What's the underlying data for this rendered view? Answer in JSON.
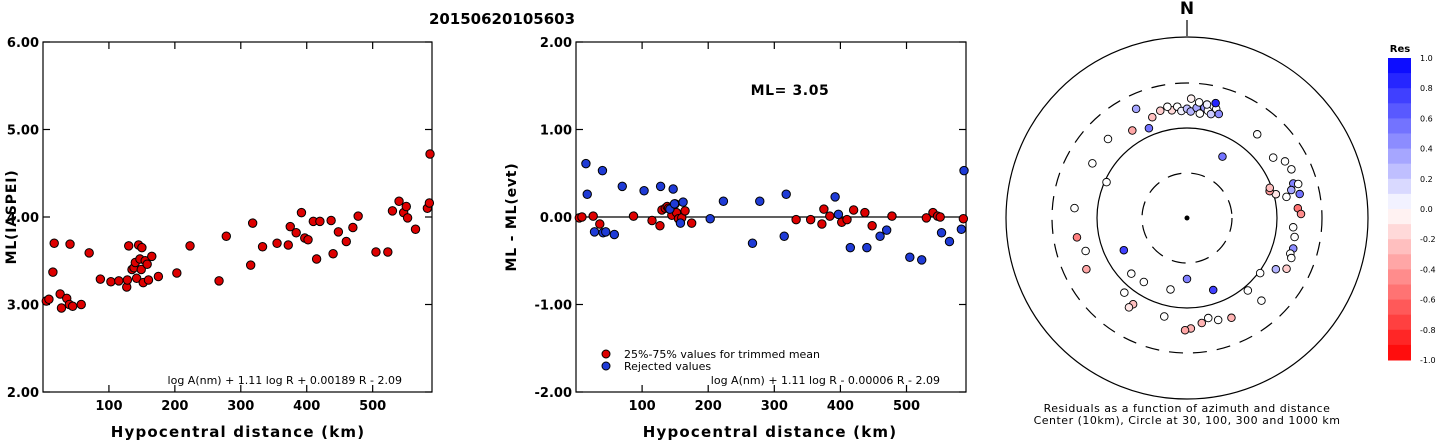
{
  "title": "20150620105603",
  "chart_data": [
    {
      "type": "scatter",
      "id": "left",
      "ylabel": "ML(IASPEI)",
      "xlabel": "Hypocentral distance (km)",
      "ylim": [
        2.0,
        6.0
      ],
      "xlim": [
        0,
        590
      ],
      "yticks": [
        "2.00",
        "3.00",
        "4.00",
        "5.00",
        "6.00"
      ],
      "xticks": [
        "100",
        "200",
        "300",
        "400",
        "500"
      ],
      "formula": "log A(nm) + 1.11 log R + 0.00189 R - 2.09",
      "marker_color": "#dd0000",
      "points": [
        [
          5,
          3.04
        ],
        [
          9,
          3.06
        ],
        [
          15,
          3.37
        ],
        [
          17,
          3.7
        ],
        [
          26,
          3.12
        ],
        [
          28,
          2.96
        ],
        [
          36,
          3.07
        ],
        [
          40,
          3.0
        ],
        [
          45,
          2.98
        ],
        [
          41,
          3.69
        ],
        [
          58,
          3.0
        ],
        [
          70,
          3.59
        ],
        [
          87,
          3.29
        ],
        [
          103,
          3.26
        ],
        [
          115,
          3.27
        ],
        [
          127,
          3.2
        ],
        [
          128,
          3.28
        ],
        [
          130,
          3.67
        ],
        [
          135,
          3.4
        ],
        [
          138,
          3.42
        ],
        [
          140,
          3.48
        ],
        [
          142,
          3.3
        ],
        [
          145,
          3.68
        ],
        [
          147,
          3.52
        ],
        [
          149,
          3.4
        ],
        [
          150,
          3.65
        ],
        [
          152,
          3.25
        ],
        [
          155,
          3.5
        ],
        [
          158,
          3.46
        ],
        [
          160,
          3.28
        ],
        [
          165,
          3.55
        ],
        [
          175,
          3.32
        ],
        [
          203,
          3.36
        ],
        [
          223,
          3.67
        ],
        [
          267,
          3.27
        ],
        [
          278,
          3.78
        ],
        [
          315,
          3.45
        ],
        [
          318,
          3.93
        ],
        [
          333,
          3.66
        ],
        [
          355,
          3.7
        ],
        [
          372,
          3.68
        ],
        [
          375,
          3.89
        ],
        [
          384,
          3.82
        ],
        [
          392,
          4.05
        ],
        [
          397,
          3.76
        ],
        [
          402,
          3.74
        ],
        [
          410,
          3.95
        ],
        [
          415,
          3.52
        ],
        [
          420,
          3.95
        ],
        [
          437,
          3.96
        ],
        [
          440,
          3.58
        ],
        [
          448,
          3.83
        ],
        [
          460,
          3.72
        ],
        [
          470,
          3.88
        ],
        [
          478,
          4.01
        ],
        [
          505,
          3.6
        ],
        [
          523,
          3.6
        ],
        [
          530,
          4.07
        ],
        [
          540,
          4.18
        ],
        [
          547,
          4.05
        ],
        [
          551,
          4.12
        ],
        [
          553,
          3.99
        ],
        [
          565,
          3.86
        ],
        [
          583,
          4.1
        ],
        [
          586,
          4.16
        ],
        [
          587,
          4.72
        ]
      ]
    },
    {
      "type": "scatter",
      "id": "middle",
      "ylabel": "ML - ML(evt)",
      "xlabel": "Hypocentral distance (km)",
      "ylim": [
        -2.0,
        2.0
      ],
      "xlim": [
        0,
        590
      ],
      "yticks": [
        "-2.00",
        "-1.00",
        "0.00",
        "1.00",
        "2.00"
      ],
      "xticks": [
        "100",
        "200",
        "300",
        "400",
        "500"
      ],
      "annotation": "ML= 3.05",
      "formula": "log A(nm) + 1.11 log R - 0.00006 R - 2.09",
      "legend": [
        {
          "label": "25%-75% values for trimmed mean",
          "color": "#dd0000"
        },
        {
          "label": "Rejected values",
          "color": "#1f3bd6"
        }
      ],
      "series": [
        {
          "name": "25%-75% values for trimmed mean",
          "color": "#dd0000",
          "points": [
            [
              5,
              -0.01
            ],
            [
              9,
              0.0
            ],
            [
              26,
              0.01
            ],
            [
              36,
              -0.08
            ],
            [
              87,
              0.01
            ],
            [
              115,
              -0.04
            ],
            [
              127,
              -0.1
            ],
            [
              130,
              0.08
            ],
            [
              135,
              0.1
            ],
            [
              138,
              0.12
            ],
            [
              140,
              0.1
            ],
            [
              145,
              0.02
            ],
            [
              150,
              0.15
            ],
            [
              152,
              0.05
            ],
            [
              155,
              -0.02
            ],
            [
              160,
              -0.01
            ],
            [
              165,
              0.07
            ],
            [
              175,
              -0.07
            ],
            [
              333,
              -0.03
            ],
            [
              355,
              -0.03
            ],
            [
              372,
              -0.08
            ],
            [
              375,
              0.09
            ],
            [
              384,
              0.01
            ],
            [
              402,
              -0.06
            ],
            [
              410,
              -0.03
            ],
            [
              420,
              0.08
            ],
            [
              437,
              0.05
            ],
            [
              448,
              -0.1
            ],
            [
              478,
              0.01
            ],
            [
              530,
              -0.01
            ],
            [
              540,
              0.05
            ],
            [
              547,
              0.01
            ],
            [
              551,
              0.0
            ],
            [
              586,
              -0.02
            ]
          ]
        },
        {
          "name": "Rejected values",
          "color": "#1f3bd6",
          "points": [
            [
              15,
              0.61
            ],
            [
              17,
              0.26
            ],
            [
              28,
              -0.17
            ],
            [
              40,
              0.53
            ],
            [
              41,
              -0.18
            ],
            [
              45,
              -0.17
            ],
            [
              58,
              -0.2
            ],
            [
              70,
              0.35
            ],
            [
              103,
              0.3
            ],
            [
              128,
              0.35
            ],
            [
              142,
              0.09
            ],
            [
              147,
              0.32
            ],
            [
              149,
              0.15
            ],
            [
              158,
              -0.07
            ],
            [
              162,
              0.17
            ],
            [
              203,
              -0.02
            ],
            [
              223,
              0.18
            ],
            [
              267,
              -0.3
            ],
            [
              278,
              0.18
            ],
            [
              315,
              -0.22
            ],
            [
              318,
              0.26
            ],
            [
              392,
              0.23
            ],
            [
              397,
              0.03
            ],
            [
              415,
              -0.35
            ],
            [
              440,
              -0.35
            ],
            [
              460,
              -0.22
            ],
            [
              470,
              -0.15
            ],
            [
              505,
              -0.46
            ],
            [
              523,
              -0.49
            ],
            [
              553,
              -0.18
            ],
            [
              565,
              -0.28
            ],
            [
              583,
              -0.14
            ],
            [
              587,
              0.53
            ]
          ]
        }
      ]
    },
    {
      "type": "scatter",
      "id": "polar",
      "subtype": "azimuth-distance",
      "north_label": "N",
      "caption_line1": "Residuals as a function of azimuth and distance",
      "caption_line2": "Center (10km), Circle at 30, 100, 300 and 1000 km",
      "colorbar_title": "Res",
      "colorbar_ticks": [
        "1.0",
        "0.8",
        "0.6",
        "0.4",
        "0.2",
        "0.0",
        "-0.2",
        "-0.4",
        "-0.6",
        "-0.8",
        "-1.0"
      ],
      "rings_km": [
        30,
        100,
        300,
        1000
      ],
      "points": [
        {
          "az": 30,
          "dist": 60,
          "res": 0.55
        },
        {
          "az": 180,
          "dist": 46,
          "res": 0.5
        },
        {
          "az": 160,
          "dist": 70,
          "res": 0.75
        },
        {
          "az": 140,
          "dist": 112,
          "res": 0.0
        },
        {
          "az": 225,
          "dist": 74,
          "res": 0.0
        },
        {
          "az": 193,
          "dist": 64,
          "res": 0.0
        },
        {
          "az": 243,
          "dist": 60,
          "res": 0.75
        },
        {
          "az": 214,
          "dist": 71,
          "res": 0.0
        },
        {
          "az": 352,
          "dist": 158,
          "res": -0.15
        },
        {
          "az": 355,
          "dist": 170,
          "res": 0.0
        },
        {
          "az": 357,
          "dist": 152,
          "res": 0.05
        },
        {
          "az": 0,
          "dist": 160,
          "res": 0.25
        },
        {
          "az": 2,
          "dist": 150,
          "res": 0.3
        },
        {
          "az": 5,
          "dist": 165,
          "res": 0.35
        },
        {
          "az": 7,
          "dist": 145,
          "res": 0.0
        },
        {
          "az": 9,
          "dist": 170,
          "res": 0.4
        },
        {
          "az": 11,
          "dist": 160,
          "res": 0.0
        },
        {
          "az": 13,
          "dist": 150,
          "res": 0.2
        },
        {
          "az": 15,
          "dist": 175,
          "res": 0.0
        },
        {
          "az": 17,
          "dist": 158,
          "res": 0.45
        },
        {
          "az": 346,
          "dist": 165,
          "res": -0.2
        },
        {
          "az": 350,
          "dist": 175,
          "res": 0.0
        },
        {
          "az": 341,
          "dist": 150,
          "res": -0.25
        },
        {
          "az": 337,
          "dist": 120,
          "res": 0.55
        },
        {
          "az": 335,
          "dist": 210,
          "res": 0.35
        },
        {
          "az": 328,
          "dist": 138,
          "res": -0.35
        },
        {
          "az": 315,
          "dist": 170,
          "res": 0.0
        },
        {
          "az": 300,
          "dist": 160,
          "res": 0.0
        },
        {
          "az": 2,
          "dist": 205,
          "res": -0.05
        },
        {
          "az": 6,
          "dist": 190,
          "res": 0.0
        },
        {
          "az": 10,
          "dist": 185,
          "res": 0.05
        },
        {
          "az": 14,
          "dist": 200,
          "res": 0.85
        },
        {
          "az": 40,
          "dist": 160,
          "res": 0.0
        },
        {
          "az": 55,
          "dist": 145,
          "res": 0.0
        },
        {
          "az": 60,
          "dist": 176,
          "res": 0.0
        },
        {
          "az": 65,
          "dist": 185,
          "res": 0.0
        },
        {
          "az": 72,
          "dist": 170,
          "res": 0.5
        },
        {
          "az": 73,
          "dist": 190,
          "res": 0.0
        },
        {
          "az": 75,
          "dist": 155,
          "res": 0.35
        },
        {
          "az": 78,
          "dist": 185,
          "res": 0.55
        },
        {
          "az": 78,
          "dist": 133,
          "res": 0.0
        },
        {
          "az": 75,
          "dist": 105,
          "res": -0.1
        },
        {
          "az": 72,
          "dist": 92,
          "res": -0.4
        },
        {
          "az": 70,
          "dist": 95,
          "res": -0.25
        },
        {
          "az": 85,
          "dist": 168,
          "res": -0.55
        },
        {
          "az": 88,
          "dist": 180,
          "res": -0.45
        },
        {
          "az": 95,
          "dist": 150,
          "res": 0.0
        },
        {
          "az": 100,
          "dist": 160,
          "res": 0.0
        },
        {
          "az": 106,
          "dist": 165,
          "res": 0.45
        },
        {
          "az": 109,
          "dist": 160,
          "res": 0.0
        },
        {
          "az": 111,
          "dist": 170,
          "res": 0.0
        },
        {
          "az": 117,
          "dist": 170,
          "res": -0.2
        },
        {
          "az": 120,
          "dist": 136,
          "res": 0.3
        },
        {
          "az": 127,
          "dist": 104,
          "res": 0.0
        },
        {
          "az": 138,
          "dist": 168,
          "res": 0.0
        },
        {
          "az": 156,
          "dist": 160,
          "res": -0.3
        },
        {
          "az": 163,
          "dist": 150,
          "res": 0.0
        },
        {
          "az": 168,
          "dist": 135,
          "res": 0.0
        },
        {
          "az": 172,
          "dist": 148,
          "res": -0.3
        },
        {
          "az": 178,
          "dist": 165,
          "res": -0.3
        },
        {
          "az": 181,
          "dist": 172,
          "res": -0.35
        },
        {
          "az": 193,
          "dist": 131,
          "res": 0.0
        },
        {
          "az": 212,
          "dist": 133,
          "res": -0.25
        },
        {
          "az": 213,
          "dist": 150,
          "res": -0.1
        },
        {
          "az": 220,
          "dist": 120,
          "res": 0.0
        },
        {
          "az": 243,
          "dist": 175,
          "res": -0.35
        },
        {
          "az": 252,
          "dist": 150,
          "res": 0.0
        },
        {
          "az": 260,
          "dist": 170,
          "res": -0.5
        },
        {
          "az": 275,
          "dist": 175,
          "res": 0.0
        },
        {
          "az": 294,
          "dist": 95,
          "res": 0.0
        }
      ]
    }
  ]
}
